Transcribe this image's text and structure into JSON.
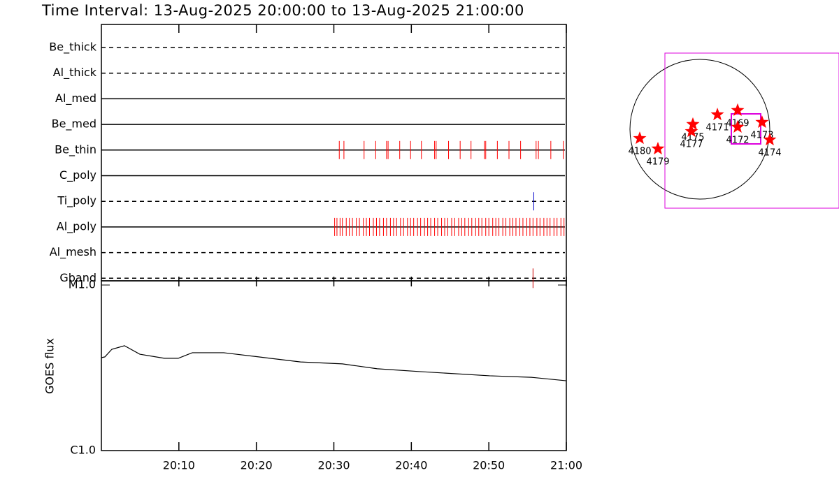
{
  "chart_data": [
    {
      "type": "timeline",
      "title": "Time Interval: 13-Aug-2025 20:00:00 to 13-Aug-2025 21:00:00",
      "xlim": [
        0,
        60
      ],
      "rows": [
        {
          "name": "Be_thick",
          "style": "dashed"
        },
        {
          "name": "Al_thick",
          "style": "dashed"
        },
        {
          "name": "Al_med",
          "style": "solid"
        },
        {
          "name": "Be_med",
          "style": "solid"
        },
        {
          "name": "Be_thin",
          "style": "solid",
          "color": "#ff0000",
          "events": [
            30.7,
            31.3,
            33.9,
            35.4,
            36.8,
            37.0,
            38.5,
            39.9,
            41.3,
            43.0,
            43.2,
            44.8,
            46.3,
            47.7,
            49.4,
            49.6,
            51.1,
            52.6,
            54.1,
            56.1,
            56.4,
            58.0,
            59.6
          ]
        },
        {
          "name": "C_poly",
          "style": "solid"
        },
        {
          "name": "Ti_poly",
          "style": "dashed",
          "color": "#0000cc",
          "events": [
            55.8
          ]
        },
        {
          "name": "Al_poly",
          "style": "solid",
          "color": "#ff0000",
          "events": [
            30.1,
            30.4,
            30.8,
            31.1,
            31.6,
            32.0,
            32.4,
            32.9,
            33.3,
            33.8,
            34.2,
            34.6,
            35.1,
            35.5,
            35.9,
            36.4,
            36.8,
            37.3,
            37.7,
            38.1,
            38.6,
            39.0,
            39.5,
            39.9,
            40.3,
            40.8,
            41.2,
            41.7,
            42.1,
            42.5,
            43.0,
            43.4,
            43.9,
            44.3,
            44.7,
            45.2,
            45.6,
            46.1,
            46.5,
            46.9,
            47.4,
            47.8,
            48.3,
            48.7,
            49.1,
            49.6,
            50.0,
            50.5,
            50.9,
            51.3,
            51.8,
            52.2,
            52.7,
            53.1,
            53.5,
            54.0,
            54.4,
            54.9,
            55.3,
            55.7,
            56.2,
            56.6,
            57.1,
            57.5,
            57.9,
            58.4,
            58.8,
            59.3,
            59.7
          ]
        },
        {
          "name": "Al_mesh",
          "style": "dashed"
        },
        {
          "name": "Gband",
          "style": "dashed",
          "color": "#cc0000",
          "events": [
            55.7
          ]
        }
      ]
    },
    {
      "type": "line",
      "ylabel": "GOES flux",
      "color": "#000000",
      "ylog": true,
      "x": [
        0,
        0.45,
        1.35,
        2.98,
        4.96,
        8.12,
        9.92,
        11.73,
        15.79,
        20.3,
        25.7,
        31.1,
        35.6,
        41.1,
        50.1,
        55.5,
        60
      ],
      "values": [
        3.64e-06,
        3.68e-06,
        4.09e-06,
        4.3e-06,
        3.82e-06,
        3.61e-06,
        3.61e-06,
        3.9e-06,
        3.9e-06,
        3.68e-06,
        3.43e-06,
        3.34e-06,
        3.12e-06,
        3e-06,
        2.83e-06,
        2.77e-06,
        2.64e-06
      ],
      "xlim": [
        0,
        60
      ],
      "xticks": [
        {
          "value": 10,
          "label": "20:10"
        },
        {
          "value": 20,
          "label": "20:20"
        },
        {
          "value": 30,
          "label": "20:30"
        },
        {
          "value": 40,
          "label": "20:40"
        },
        {
          "value": 50,
          "label": "20:50"
        },
        {
          "value": 60,
          "label": "21:00"
        }
      ],
      "ylim": [
        1e-06,
        1e-05
      ],
      "yticks": [
        {
          "value": 1e-06,
          "label": "C1.0"
        },
        {
          "value": 1e-05,
          "label": "M1.0"
        }
      ]
    },
    {
      "type": "scatter",
      "marker": "star",
      "color": "#ff0000",
      "x": [
        -817,
        -570,
        -95,
        -114,
        238,
        513,
        513,
        845,
        950
      ],
      "values": [
        -124,
        -266,
        67,
        -29,
        199,
        257,
        29,
        95,
        -143
      ],
      "point_labels": [
        "4180",
        "4179",
        "4175",
        "4177",
        "4171",
        "4169",
        "4172",
        "4173",
        "4174"
      ]
    }
  ]
}
